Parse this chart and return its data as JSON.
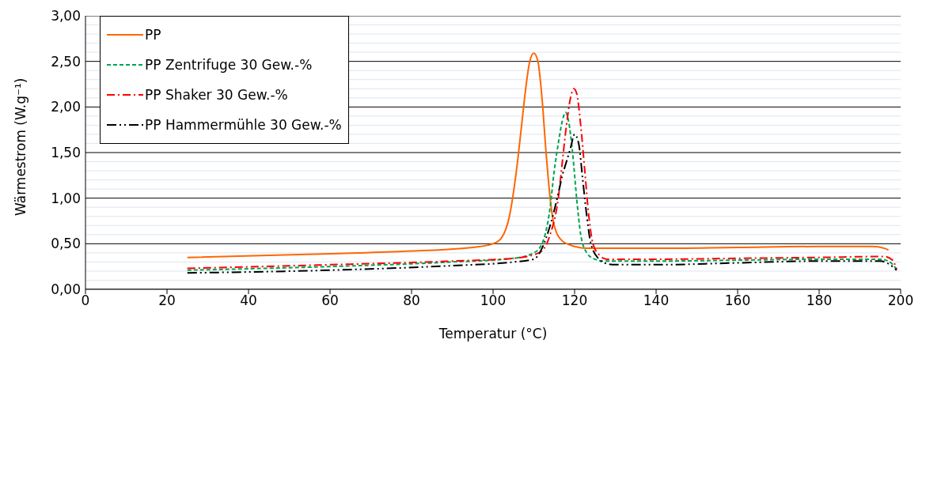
{
  "chart_data": {
    "type": "line",
    "xlabel": "Temperatur (°C)",
    "ylabel": "Wärmestrom (W.g⁻¹)",
    "xlim": [
      0,
      200
    ],
    "xticks": [
      0,
      20,
      40,
      60,
      80,
      100,
      120,
      140,
      160,
      180,
      200
    ],
    "ylim": [
      0,
      3
    ],
    "yticks": [
      {
        "value": 0,
        "label": "0,00"
      },
      {
        "value": 0.1,
        "label": null
      },
      {
        "value": 0.2,
        "label": null
      },
      {
        "value": 0.3,
        "label": null
      },
      {
        "value": 0.4,
        "label": null
      },
      {
        "value": 0.5,
        "label": "0,50"
      },
      {
        "value": 0.6,
        "label": null
      },
      {
        "value": 0.7,
        "label": null
      },
      {
        "value": 0.8,
        "label": null
      },
      {
        "value": 0.9,
        "label": null
      },
      {
        "value": 1,
        "label": "1,00"
      },
      {
        "value": 1.1,
        "label": null
      },
      {
        "value": 1.2,
        "label": null
      },
      {
        "value": 1.3,
        "label": null
      },
      {
        "value": 1.4,
        "label": null
      },
      {
        "value": 1.5,
        "label": "1,50"
      },
      {
        "value": 1.6,
        "label": null
      },
      {
        "value": 1.7,
        "label": null
      },
      {
        "value": 1.8,
        "label": null
      },
      {
        "value": 1.9,
        "label": null
      },
      {
        "value": 2,
        "label": "2,00"
      },
      {
        "value": 2.1,
        "label": null
      },
      {
        "value": 2.2,
        "label": null
      },
      {
        "value": 2.3,
        "label": null
      },
      {
        "value": 2.4,
        "label": null
      },
      {
        "value": 2.5,
        "label": "2,50"
      },
      {
        "value": 2.6,
        "label": null
      },
      {
        "value": 2.7,
        "label": null
      },
      {
        "value": 2.8,
        "label": null
      },
      {
        "value": 2.9,
        "label": null
      },
      {
        "value": 3,
        "label": "3,00"
      }
    ],
    "grid": "y",
    "legend": "top left",
    "marker": "none",
    "series": [
      {
        "name": "PP",
        "color": "#ff6600",
        "line_style": "solid",
        "x": [
          25,
          60,
          80,
          95,
          100,
          102,
          104,
          106,
          107,
          108,
          109,
          110,
          111,
          112,
          113,
          114,
          115,
          117,
          120,
          123,
          140,
          160,
          180,
          193,
          196,
          197
        ],
        "values": [
          0.35,
          0.39,
          0.42,
          0.46,
          0.5,
          0.56,
          0.8,
          1.4,
          1.8,
          2.2,
          2.5,
          2.59,
          2.5,
          2.1,
          1.5,
          1.0,
          0.7,
          0.53,
          0.47,
          0.45,
          0.45,
          0.46,
          0.47,
          0.47,
          0.45,
          0.43
        ]
      },
      {
        "name": "PP Zentrifuge 30 Gew.-%",
        "color": "#00a550",
        "line_style": "dashed",
        "x": [
          25,
          60,
          90,
          105,
          110,
          112,
          114,
          115,
          116,
          117,
          117.8,
          118.5,
          119.5,
          120.5,
          121.5,
          123,
          125,
          127,
          140,
          160,
          180,
          195,
          197,
          199
        ],
        "values": [
          0.21,
          0.25,
          0.3,
          0.34,
          0.4,
          0.5,
          0.9,
          1.3,
          1.6,
          1.85,
          1.94,
          1.85,
          1.5,
          1.0,
          0.6,
          0.4,
          0.33,
          0.31,
          0.31,
          0.32,
          0.33,
          0.33,
          0.31,
          0.22
        ]
      },
      {
        "name": "PP Shaker 30 Gew.-%",
        "color": "#ff0000",
        "line_style": "dashdot",
        "x": [
          25,
          60,
          90,
          105,
          110,
          112,
          114,
          116,
          117,
          118,
          119,
          119.8,
          120.5,
          121.5,
          122.5,
          123.5,
          124.5,
          126,
          128,
          140,
          160,
          180,
          196,
          198,
          199
        ],
        "values": [
          0.23,
          0.27,
          0.31,
          0.34,
          0.38,
          0.42,
          0.6,
          1.0,
          1.4,
          1.8,
          2.1,
          2.2,
          2.15,
          1.8,
          1.3,
          0.8,
          0.5,
          0.38,
          0.33,
          0.33,
          0.34,
          0.35,
          0.36,
          0.32,
          0.22
        ]
      },
      {
        "name": "PP Hammermühle 30 Gew.-%",
        "color": "#000000",
        "line_style": "dashdotdot",
        "x": [
          25,
          60,
          90,
          105,
          110,
          112,
          114,
          116,
          117,
          118,
          119,
          120,
          121,
          122,
          123,
          124,
          126,
          128,
          130,
          140,
          160,
          180,
          195,
          197,
          199
        ],
        "values": [
          0.18,
          0.21,
          0.26,
          0.3,
          0.33,
          0.45,
          0.7,
          1.05,
          1.25,
          1.4,
          1.55,
          1.7,
          1.6,
          1.2,
          0.8,
          0.5,
          0.33,
          0.28,
          0.27,
          0.27,
          0.29,
          0.31,
          0.31,
          0.28,
          0.21
        ]
      }
    ]
  }
}
